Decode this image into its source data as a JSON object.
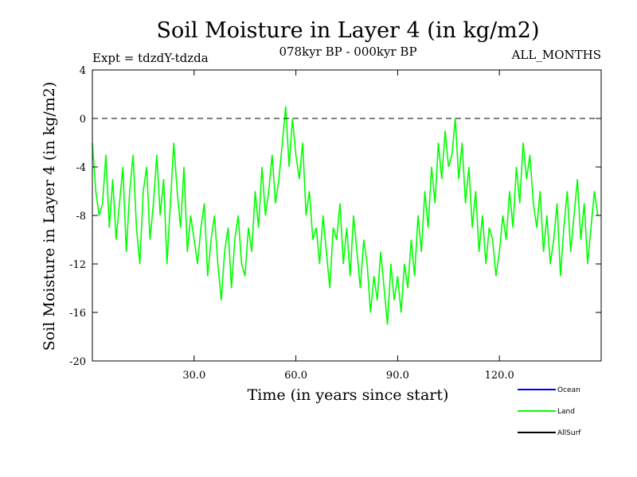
{
  "chart_data": {
    "type": "line",
    "title": "Soil Moisture in Layer 4 (in kg/m2)",
    "subtitle_left": "Expt = tdzdY-tdzda",
    "subtitle_center": "078kyr BP - 000kyr BP",
    "subtitle_right": "ALL_MONTHS",
    "xlabel": "Time (in years since start)",
    "ylabel": "Soil Moisture in Layer 4 (in kg/m2)",
    "xlim": [
      0,
      150
    ],
    "ylim": [
      -20,
      4
    ],
    "xticks": [
      30,
      60,
      90,
      120
    ],
    "xtick_labels": [
      "30.0",
      "60.0",
      "90.0",
      "120.0"
    ],
    "yticks": [
      4,
      0,
      -4,
      -8,
      -12,
      -16,
      -20
    ],
    "ytick_labels": [
      "4",
      "0",
      "-4",
      "-8",
      "-12",
      "-16",
      "-20"
    ],
    "reference_line": 0,
    "legend": [
      {
        "name": "Ocean",
        "color": "#0000ff"
      },
      {
        "name": "Land",
        "color": "#00ff00"
      },
      {
        "name": "AllSurf",
        "color": "#000000"
      }
    ],
    "series": [
      {
        "name": "Land",
        "color": "#00ff00",
        "x_start": 0,
        "x_step": 1,
        "values": [
          -2,
          -6,
          -8,
          -7,
          -3,
          -9,
          -5,
          -10,
          -7,
          -4,
          -11,
          -6,
          -3,
          -9,
          -12,
          -6,
          -4,
          -10,
          -7,
          -3,
          -8,
          -5,
          -12,
          -7,
          -2,
          -6,
          -9,
          -4,
          -11,
          -8,
          -10,
          -12,
          -9,
          -7,
          -13,
          -10,
          -8,
          -12,
          -15,
          -11,
          -9,
          -14,
          -10,
          -8,
          -12,
          -13,
          -9,
          -11,
          -6,
          -9,
          -4,
          -8,
          -6,
          -3,
          -7,
          -5,
          -2,
          1,
          -4,
          0,
          -3,
          -5,
          -2,
          -8,
          -6,
          -10,
          -9,
          -12,
          -8,
          -11,
          -14,
          -9,
          -10,
          -7,
          -12,
          -9,
          -13,
          -8,
          -11,
          -14,
          -10,
          -12,
          -16,
          -13,
          -15,
          -11,
          -14,
          -17,
          -12,
          -15,
          -13,
          -16,
          -12,
          -14,
          -10,
          -13,
          -8,
          -11,
          -6,
          -9,
          -4,
          -7,
          -2,
          -5,
          -1,
          -4,
          -3,
          0,
          -5,
          -2,
          -7,
          -4,
          -9,
          -6,
          -11,
          -8,
          -12,
          -9,
          -10,
          -13,
          -11,
          -8,
          -10,
          -6,
          -9,
          -4,
          -7,
          -2,
          -5,
          -3,
          -7,
          -9,
          -6,
          -11,
          -8,
          -12,
          -10,
          -7,
          -13,
          -9,
          -6,
          -11,
          -8,
          -5,
          -10,
          -7,
          -12,
          -9,
          -6,
          -8
        ]
      }
    ]
  }
}
